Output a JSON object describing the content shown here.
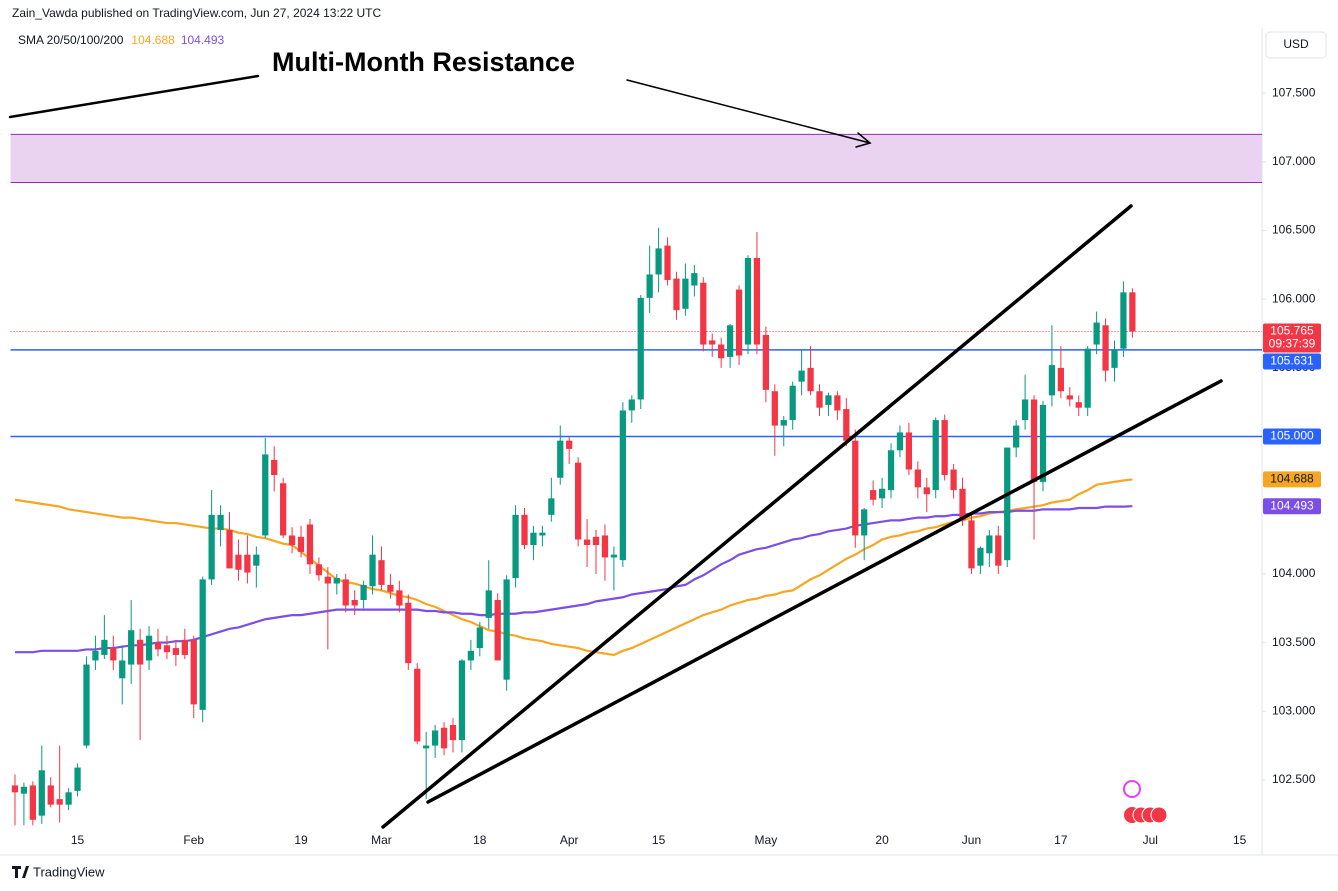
{
  "header": "Zain_Vawda published on TradingView.com, Jun 27, 2024 13:22 UTC",
  "currency_button": "USD",
  "footer": "TradingView",
  "chart_data": {
    "type": "candlestick",
    "annotation": "Multi-Month Resistance",
    "up_color": "#089981",
    "down_color": "#f23645",
    "grid": false,
    "ylim": [
      102.15,
      107.96
    ],
    "yticks": [
      {
        "value": 102.5,
        "label": "102.500"
      },
      {
        "value": 103,
        "label": "103.000"
      },
      {
        "value": 103.5,
        "label": "103.500"
      },
      {
        "value": 104,
        "label": "104.000"
      },
      {
        "value": 104.5,
        "label": "104.500"
      },
      {
        "value": 105,
        "label": "105.000"
      },
      {
        "value": 105.5,
        "label": "105.500"
      },
      {
        "value": 106,
        "label": "106.000"
      },
      {
        "value": 106.5,
        "label": "106.500"
      },
      {
        "value": 107,
        "label": "107.000"
      },
      {
        "value": 107.5,
        "label": "107.500"
      }
    ],
    "categories": [
      null,
      null,
      null,
      null,
      null,
      null,
      null,
      "15",
      null,
      null,
      null,
      null,
      null,
      null,
      null,
      null,
      null,
      null,
      null,
      null,
      "Feb",
      null,
      null,
      null,
      null,
      null,
      null,
      null,
      null,
      null,
      null,
      null,
      "19",
      null,
      null,
      null,
      null,
      null,
      null,
      null,
      null,
      "Mar",
      null,
      null,
      null,
      null,
      null,
      null,
      null,
      null,
      null,
      null,
      "18",
      null,
      null,
      null,
      null,
      null,
      null,
      null,
      null,
      null,
      "Apr",
      null,
      null,
      null,
      null,
      null,
      null,
      null,
      null,
      null,
      "15",
      null,
      null,
      null,
      null,
      null,
      null,
      null,
      null,
      null,
      null,
      null,
      "May",
      null,
      null,
      null,
      null,
      null,
      null,
      null,
      null,
      null,
      null,
      null,
      null,
      "20",
      null,
      null,
      null,
      null,
      null,
      null,
      null,
      null,
      null,
      "Jun",
      null,
      null,
      null,
      null,
      null,
      null,
      null,
      null,
      null,
      "17",
      null,
      null,
      null,
      null,
      null,
      null,
      null,
      null,
      null,
      "Jul",
      null,
      null,
      null,
      null,
      null,
      null,
      null,
      null,
      null,
      "15",
      null,
      null
    ],
    "ohlc": [
      [
        102.46,
        102.54,
        102.17,
        102.41
      ],
      [
        102.4,
        102.48,
        102.17,
        102.45
      ],
      [
        102.46,
        102.49,
        102.17,
        102.21
      ],
      [
        102.24,
        102.75,
        102.18,
        102.57
      ],
      [
        102.46,
        102.52,
        102.3,
        102.32
      ],
      [
        102.36,
        102.75,
        102.19,
        102.32
      ],
      [
        102.32,
        102.44,
        102.28,
        102.41
      ],
      [
        102.42,
        102.62,
        102.38,
        102.59
      ],
      [
        102.75,
        103.4,
        102.73,
        103.34
      ],
      [
        103.37,
        103.55,
        103.3,
        103.44
      ],
      [
        103.41,
        103.7,
        103.38,
        103.52
      ],
      [
        103.46,
        103.55,
        103.3,
        103.37
      ],
      [
        103.24,
        103.48,
        103.05,
        103.37
      ],
      [
        103.34,
        103.81,
        103.2,
        103.59
      ],
      [
        103.52,
        103.6,
        102.79,
        103.34
      ],
      [
        103.37,
        103.62,
        103.3,
        103.55
      ],
      [
        103.5,
        103.6,
        103.4,
        103.45
      ],
      [
        103.48,
        103.55,
        103.38,
        103.43
      ],
      [
        103.46,
        103.52,
        103.33,
        103.41
      ],
      [
        103.52,
        103.6,
        103.38,
        103.41
      ],
      [
        103.52,
        103.55,
        102.95,
        103.05
      ],
      [
        103.01,
        103.98,
        102.92,
        103.96
      ],
      [
        103.96,
        104.61,
        103.92,
        104.43
      ],
      [
        104.32,
        104.5,
        104.2,
        104.43
      ],
      [
        104.32,
        104.45,
        104.05,
        104.04
      ],
      [
        104.14,
        104.25,
        103.95,
        104.03
      ],
      [
        104.14,
        104.28,
        103.93,
        104.01
      ],
      [
        104.06,
        104.2,
        103.9,
        104.14
      ],
      [
        104.28,
        104.99,
        104.26,
        104.87
      ],
      [
        104.83,
        104.93,
        104.6,
        104.72
      ],
      [
        104.66,
        104.7,
        104.26,
        104.28
      ],
      [
        104.28,
        104.34,
        104.15,
        104.21
      ],
      [
        104.27,
        104.35,
        104.12,
        104.16
      ],
      [
        104.36,
        104.4,
        104.0,
        104.07
      ],
      [
        104.07,
        104.12,
        103.95,
        103.99
      ],
      [
        103.98,
        104.05,
        103.45,
        103.93
      ],
      [
        103.93,
        104.0,
        103.85,
        103.97
      ],
      [
        103.96,
        104.0,
        103.72,
        103.77
      ],
      [
        103.81,
        103.88,
        103.7,
        103.77
      ],
      [
        103.81,
        103.95,
        103.75,
        103.92
      ],
      [
        103.91,
        104.28,
        103.85,
        104.14
      ],
      [
        104.1,
        104.2,
        103.88,
        103.92
      ],
      [
        103.92,
        104.0,
        103.82,
        103.87
      ],
      [
        103.88,
        103.95,
        103.72,
        103.77
      ],
      [
        103.79,
        103.85,
        103.3,
        103.35
      ],
      [
        103.31,
        103.35,
        102.76,
        102.78
      ],
      [
        102.73,
        102.85,
        102.36,
        102.75
      ],
      [
        102.75,
        102.9,
        102.66,
        102.86
      ],
      [
        102.88,
        102.92,
        102.68,
        102.73
      ],
      [
        102.9,
        102.95,
        102.7,
        102.79
      ],
      [
        102.79,
        103.38,
        102.7,
        103.37
      ],
      [
        103.37,
        103.52,
        103.3,
        103.44
      ],
      [
        103.46,
        103.65,
        103.4,
        103.61
      ],
      [
        103.68,
        104.1,
        103.6,
        103.88
      ],
      [
        103.81,
        103.86,
        103.4,
        103.37
      ],
      [
        103.23,
        103.99,
        103.15,
        103.96
      ],
      [
        103.97,
        104.5,
        103.9,
        104.43
      ],
      [
        104.43,
        104.48,
        104.18,
        104.21
      ],
      [
        104.21,
        104.35,
        104.1,
        104.3
      ],
      [
        104.28,
        104.35,
        104.2,
        104.3
      ],
      [
        104.43,
        104.7,
        104.38,
        104.55
      ],
      [
        104.7,
        105.08,
        104.65,
        104.97
      ],
      [
        104.97,
        105.0,
        104.8,
        104.91
      ],
      [
        104.81,
        104.85,
        104.2,
        104.25
      ],
      [
        104.25,
        104.4,
        104.05,
        104.21
      ],
      [
        104.27,
        104.32,
        104.0,
        104.21
      ],
      [
        104.28,
        104.36,
        103.95,
        104.12
      ],
      [
        104.12,
        104.2,
        103.88,
        104.14
      ],
      [
        104.1,
        105.25,
        104.05,
        105.19
      ],
      [
        105.19,
        105.3,
        105.1,
        105.27
      ],
      [
        105.27,
        106.03,
        105.2,
        106.01
      ],
      [
        106.01,
        106.39,
        105.9,
        106.18
      ],
      [
        106.18,
        106.52,
        106.05,
        106.37
      ],
      [
        106.39,
        106.45,
        106.1,
        106.14
      ],
      [
        106.15,
        106.2,
        105.85,
        105.92
      ],
      [
        105.93,
        106.26,
        105.88,
        106.15
      ],
      [
        106.1,
        106.25,
        106.02,
        106.19
      ],
      [
        106.12,
        106.16,
        105.62,
        105.67
      ],
      [
        105.7,
        105.75,
        105.58,
        105.67
      ],
      [
        105.67,
        105.72,
        105.5,
        105.57
      ],
      [
        105.58,
        105.82,
        105.5,
        105.81
      ],
      [
        106.07,
        106.1,
        105.52,
        105.59
      ],
      [
        105.67,
        106.32,
        105.6,
        106.3
      ],
      [
        106.3,
        106.49,
        105.6,
        105.67
      ],
      [
        105.74,
        105.8,
        105.25,
        105.34
      ],
      [
        105.33,
        105.38,
        104.86,
        105.08
      ],
      [
        105.08,
        105.15,
        104.93,
        105.12
      ],
      [
        105.12,
        105.4,
        105.05,
        105.37
      ],
      [
        105.4,
        105.63,
        105.3,
        105.48
      ],
      [
        105.5,
        105.66,
        105.3,
        105.33
      ],
      [
        105.33,
        105.38,
        105.15,
        105.21
      ],
      [
        105.23,
        105.32,
        105.15,
        105.3
      ],
      [
        105.3,
        105.33,
        105.12,
        105.19
      ],
      [
        105.2,
        105.28,
        104.93,
        104.97
      ],
      [
        104.97,
        105.05,
        104.19,
        104.28
      ],
      [
        104.28,
        104.48,
        104.1,
        104.47
      ],
      [
        104.61,
        104.68,
        104.5,
        104.54
      ],
      [
        104.55,
        104.7,
        104.48,
        104.62
      ],
      [
        104.61,
        104.95,
        104.55,
        104.9
      ],
      [
        104.9,
        105.08,
        104.85,
        105.03
      ],
      [
        105.03,
        105.1,
        104.72,
        104.76
      ],
      [
        104.76,
        104.82,
        104.55,
        104.63
      ],
      [
        104.63,
        104.7,
        104.45,
        104.58
      ],
      [
        104.61,
        105.14,
        104.55,
        105.12
      ],
      [
        105.12,
        105.16,
        104.68,
        104.72
      ],
      [
        104.76,
        104.8,
        104.55,
        104.61
      ],
      [
        104.62,
        104.7,
        104.35,
        104.39
      ],
      [
        104.39,
        104.45,
        104.0,
        104.04
      ],
      [
        104.06,
        104.2,
        104.0,
        104.19
      ],
      [
        104.15,
        104.32,
        104.05,
        104.28
      ],
      [
        104.28,
        104.35,
        104.0,
        104.06
      ],
      [
        104.1,
        104.92,
        104.05,
        104.92
      ],
      [
        104.92,
        105.12,
        104.85,
        105.08
      ],
      [
        105.12,
        105.45,
        105.05,
        105.27
      ],
      [
        105.27,
        105.3,
        104.25,
        104.67
      ],
      [
        104.67,
        105.26,
        104.6,
        105.23
      ],
      [
        105.3,
        105.81,
        105.22,
        105.52
      ],
      [
        105.5,
        105.66,
        105.28,
        105.33
      ],
      [
        105.3,
        105.36,
        105.22,
        105.27
      ],
      [
        105.25,
        105.3,
        105.15,
        105.21
      ],
      [
        105.21,
        105.66,
        105.15,
        105.64
      ],
      [
        105.67,
        105.91,
        105.6,
        105.83
      ],
      [
        105.81,
        105.86,
        105.4,
        105.48
      ],
      [
        105.5,
        105.7,
        105.4,
        105.63
      ],
      [
        105.64,
        106.13,
        105.58,
        106.05
      ],
      [
        106.05,
        106.08,
        105.72,
        105.765
      ],
      null,
      null,
      null,
      null,
      null,
      null,
      null,
      null,
      null,
      null,
      null,
      null,
      null,
      null
    ],
    "countdown": "09:37:39",
    "indicator": {
      "name": "SMA 20/50/100/200",
      "series": [
        {
          "color": "#f5a623",
          "values": [
            104.54,
            104.53,
            104.52,
            104.51,
            104.5,
            104.49,
            104.47,
            104.46,
            104.45,
            104.44,
            104.43,
            104.42,
            104.41,
            104.41,
            104.4,
            104.39,
            104.38,
            104.37,
            104.37,
            104.36,
            104.35,
            104.34,
            104.33,
            104.33,
            104.32,
            104.3,
            104.29,
            104.27,
            104.26,
            104.24,
            104.22,
            104.21,
            104.16,
            104.11,
            104.06,
            104.01,
            103.96,
            103.94,
            103.93,
            103.91,
            103.89,
            103.88,
            103.86,
            103.84,
            103.83,
            103.81,
            103.78,
            103.76,
            103.73,
            103.7,
            103.67,
            103.65,
            103.62,
            103.59,
            103.58,
            103.56,
            103.55,
            103.53,
            103.52,
            103.51,
            103.49,
            103.48,
            103.47,
            103.46,
            103.44,
            103.43,
            103.42,
            103.41,
            103.44,
            103.46,
            103.49,
            103.52,
            103.55,
            103.58,
            103.61,
            103.64,
            103.67,
            103.7,
            103.72,
            103.74,
            103.77,
            103.79,
            103.81,
            103.82,
            103.84,
            103.85,
            103.87,
            103.88,
            103.92,
            103.96,
            103.99,
            104.03,
            104.07,
            104.11,
            104.14,
            104.18,
            104.21,
            104.25,
            104.27,
            104.28,
            104.3,
            104.31,
            104.33,
            104.34,
            104.36,
            104.38,
            104.39,
            104.41,
            104.42,
            104.44,
            104.45,
            104.46,
            104.47,
            104.48,
            104.49,
            104.5,
            104.52,
            104.53,
            104.54,
            104.58,
            104.61,
            104.65,
            104.66,
            104.67,
            104.68,
            104.688,
            null,
            null,
            null,
            null,
            null,
            null,
            null,
            null,
            null,
            null,
            null,
            null,
            null,
            null
          ]
        },
        {
          "color": "#7b4fe6",
          "values": [
            103.43,
            103.43,
            103.43,
            103.44,
            103.44,
            103.44,
            103.44,
            103.44,
            103.45,
            103.45,
            103.46,
            103.46,
            103.47,
            103.48,
            103.48,
            103.49,
            103.5,
            103.5,
            103.51,
            103.51,
            103.52,
            103.54,
            103.56,
            103.58,
            103.6,
            103.61,
            103.63,
            103.65,
            103.67,
            103.68,
            103.69,
            103.7,
            103.7,
            103.71,
            103.72,
            103.73,
            103.74,
            103.74,
            103.74,
            103.74,
            103.74,
            103.74,
            103.74,
            103.74,
            103.74,
            103.74,
            103.73,
            103.73,
            103.72,
            103.72,
            103.71,
            103.71,
            103.7,
            103.7,
            103.71,
            103.71,
            103.71,
            103.72,
            103.72,
            103.73,
            103.74,
            103.75,
            103.76,
            103.77,
            103.78,
            103.8,
            103.81,
            103.82,
            103.83,
            103.85,
            103.86,
            103.87,
            103.88,
            103.89,
            103.91,
            103.92,
            103.96,
            103.99,
            104.03,
            104.07,
            104.1,
            104.14,
            104.16,
            104.18,
            104.19,
            104.21,
            104.23,
            104.25,
            104.26,
            104.28,
            104.29,
            104.31,
            104.32,
            104.33,
            104.35,
            104.36,
            104.37,
            104.38,
            104.39,
            104.39,
            104.4,
            104.41,
            104.41,
            104.42,
            104.42,
            104.43,
            104.43,
            104.44,
            104.44,
            104.45,
            104.45,
            104.45,
            104.46,
            104.46,
            104.46,
            104.47,
            104.47,
            104.47,
            104.47,
            104.48,
            104.48,
            104.48,
            104.49,
            104.49,
            104.49,
            104.493,
            null,
            null,
            null,
            null,
            null,
            null,
            null,
            null,
            null,
            null,
            null,
            null,
            null,
            null
          ]
        }
      ]
    },
    "hlines": [
      {
        "value": 105.631,
        "color": "#2962ff"
      },
      {
        "value": 105,
        "label": "105.000",
        "color": "#2962ff"
      }
    ],
    "zone": {
      "from": 106.85,
      "to": 107.2,
      "color": "#e9d3f0",
      "border": "#9c27b0"
    }
  }
}
